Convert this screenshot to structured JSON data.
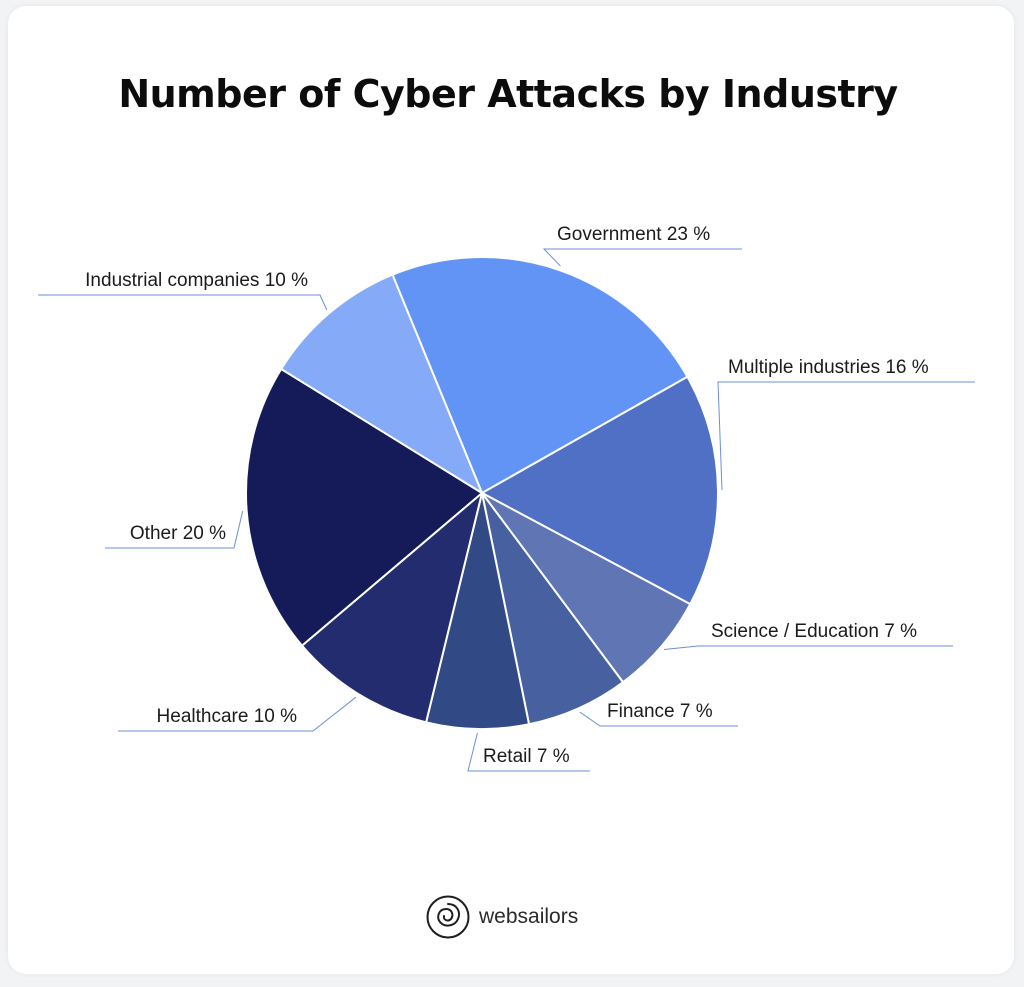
{
  "title": "Number of Cyber Attacks by Industry",
  "brand": {
    "name": "websailors",
    "icon": "websailors-logo-icon"
  },
  "chart_data": {
    "type": "pie",
    "title": "Number of Cyber Attacks by Industry",
    "unit": "%",
    "slices": [
      {
        "label": "Government 23 %",
        "name": "Government",
        "value": 23,
        "color": "#6294f5"
      },
      {
        "label": "Multiple industries 16 %",
        "name": "Multiple industries",
        "value": 16,
        "color": "#5070c6"
      },
      {
        "label": "Science / Education 7 %",
        "name": "Science / Education",
        "value": 7,
        "color": "#5f75b4"
      },
      {
        "label": "Finance 7 %",
        "name": "Finance",
        "value": 7,
        "color": "#4660a0"
      },
      {
        "label": "Retail 7 %",
        "name": "Retail",
        "value": 7,
        "color": "#314a86"
      },
      {
        "label": "Healthcare 10 %",
        "name": "Healthcare",
        "value": 10,
        "color": "#222c6e"
      },
      {
        "label": "Other 20 %",
        "name": "Other",
        "value": 20,
        "color": "#151b58"
      },
      {
        "label": "Industrial companies 10 %",
        "name": "Industrial companies",
        "value": 10,
        "color": "#84aaf8"
      }
    ]
  }
}
